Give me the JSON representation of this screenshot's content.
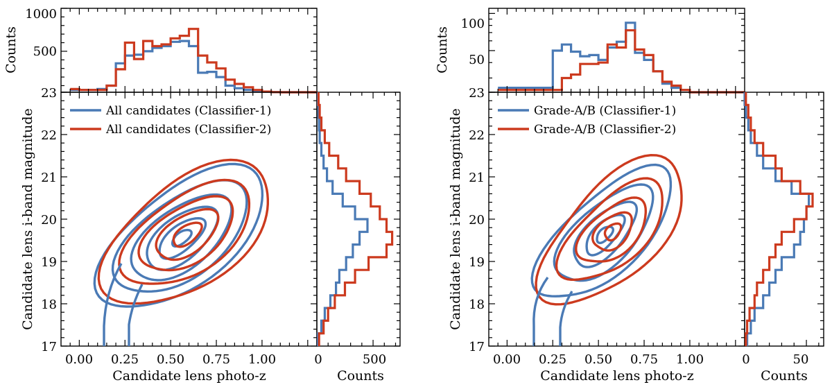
{
  "colors": {
    "series1": "#4a7ab5",
    "series2": "#cc3a1e"
  },
  "chart_data": [
    {
      "type": "scatter",
      "name": "all-candidates-panel",
      "xlabel": "Candidate lens photo-z",
      "ylabel": "Candidate lens i-band magnitude",
      "xlim": [
        -0.1,
        1.3
      ],
      "ylim": [
        17,
        23
      ],
      "xticks": [
        "0.00",
        "0.25",
        "0.50",
        "0.75",
        "1.00"
      ],
      "yticks": [
        "17",
        "18",
        "19",
        "20",
        "21",
        "22",
        "23"
      ],
      "legend": {
        "position": "top-left",
        "entries": [
          "All candidates (Classifier-1)",
          "All candidates (Classifier-2)"
        ]
      },
      "top_hist": {
        "ylabel": "Counts",
        "yticks": [
          "23",
          "500",
          "1000"
        ],
        "edges": [
          -0.05,
          0.0,
          0.05,
          0.1,
          0.15,
          0.2,
          0.25,
          0.3,
          0.35,
          0.4,
          0.45,
          0.5,
          0.55,
          0.6,
          0.65,
          0.7,
          0.75,
          0.8,
          0.85,
          0.9,
          0.95,
          1.0,
          1.05,
          1.1,
          1.15,
          1.2,
          1.25,
          1.3
        ],
        "series": [
          {
            "name": "All candidates (Classifier-1)",
            "values": [
              50,
              50,
              50,
              60,
              100,
              360,
              450,
              460,
              500,
              540,
              560,
              610,
              620,
              560,
              250,
              260,
              200,
              100,
              70,
              50,
              40,
              30,
              25,
              23,
              23,
              23,
              23
            ]
          },
          {
            "name": "All candidates (Classifier-2)",
            "values": [
              60,
              50,
              50,
              50,
              100,
              290,
              600,
              410,
              620,
              560,
              580,
              650,
              680,
              760,
              450,
              370,
              300,
              170,
              120,
              80,
              50,
              30,
              25,
              23,
              23,
              23,
              23
            ]
          }
        ]
      },
      "right_hist": {
        "xlabel": "Counts",
        "xticks": [
          "0",
          "500"
        ],
        "mag_edges": [
          17.0,
          17.3,
          17.6,
          17.9,
          18.2,
          18.5,
          18.8,
          19.1,
          19.4,
          19.7,
          20.0,
          20.3,
          20.6,
          20.9,
          21.2,
          21.5,
          21.8,
          22.1,
          22.4,
          22.7,
          23.0
        ],
        "series": [
          {
            "name": "All candidates (Classifier-1)",
            "values": [
              10,
              40,
              70,
              120,
              170,
              200,
              260,
              320,
              380,
              450,
              340,
              230,
              140,
              90,
              60,
              40,
              25,
              20,
              15,
              10
            ]
          },
          {
            "name": "All candidates (Classifier-2)",
            "values": [
              20,
              60,
              100,
              160,
              250,
              340,
              460,
              620,
              670,
              620,
              560,
              480,
              380,
              260,
              190,
              110,
              70,
              40,
              25,
              15
            ]
          }
        ]
      }
    },
    {
      "type": "scatter",
      "name": "grade-ab-panel",
      "xlabel": "Candidate lens photo-z",
      "ylabel": "Candidate lens i-band magnitude",
      "xlim": [
        -0.1,
        1.3
      ],
      "ylim": [
        17,
        23
      ],
      "xticks": [
        "0.00",
        "0.25",
        "0.50",
        "0.75",
        "1.00"
      ],
      "yticks": [
        "17",
        "18",
        "19",
        "20",
        "21",
        "22",
        "23"
      ],
      "legend": {
        "position": "top-left",
        "entries": [
          "Grade-A/B (Classifier-1)",
          "Grade-A/B (Classifier-2)"
        ]
      },
      "top_hist": {
        "ylabel": "Counts",
        "yticks": [
          "23",
          "50",
          "100"
        ],
        "edges": [
          -0.05,
          0.0,
          0.05,
          0.1,
          0.15,
          0.2,
          0.25,
          0.3,
          0.35,
          0.4,
          0.45,
          0.5,
          0.55,
          0.6,
          0.65,
          0.7,
          0.75,
          0.8,
          0.85,
          0.9,
          0.95,
          1.0,
          1.05,
          1.1,
          1.15,
          1.2,
          1.25,
          1.3
        ],
        "series": [
          {
            "name": "Grade-A/B (Classifier-1)",
            "values": [
              25,
              25,
              25,
              25,
              25,
              25,
              50,
              56,
              49,
              45,
              46,
              42,
              53,
              59,
              84,
              48,
              42,
              34,
              27,
              25,
              24,
              23,
              23,
              23,
              23,
              23,
              23
            ]
          },
          {
            "name": "Grade-A/B (Classifier-2)",
            "values": [
              24,
              24,
              24,
              24,
              24,
              24,
              24,
              30,
              32,
              39,
              39,
              40,
              56,
              53,
              73,
              51,
              46,
              34,
              28,
              26,
              24,
              23,
              23,
              23,
              23,
              23,
              23
            ]
          }
        ]
      },
      "right_hist": {
        "xlabel": "Counts",
        "xticks": [
          "0",
          "50"
        ],
        "mag_edges": [
          17.0,
          17.3,
          17.6,
          17.9,
          18.2,
          18.5,
          18.8,
          19.1,
          19.4,
          19.7,
          20.0,
          20.3,
          20.6,
          20.9,
          21.2,
          21.5,
          21.8,
          22.1,
          22.4,
          22.7,
          23.0
        ],
        "series": [
          {
            "name": "Grade-A/B (Classifier-1)",
            "values": [
              2,
              5,
              8,
              15,
              20,
              25,
              30,
              40,
              45,
              48,
              50,
              52,
              38,
              25,
              15,
              10,
              5,
              3,
              1,
              0
            ]
          },
          {
            "name": "Grade-A/B (Classifier-2)",
            "values": [
              1,
              2,
              4,
              8,
              10,
              15,
              20,
              25,
              30,
              40,
              50,
              55,
              45,
              30,
              25,
              15,
              8,
              5,
              3,
              1
            ]
          }
        ]
      }
    }
  ]
}
